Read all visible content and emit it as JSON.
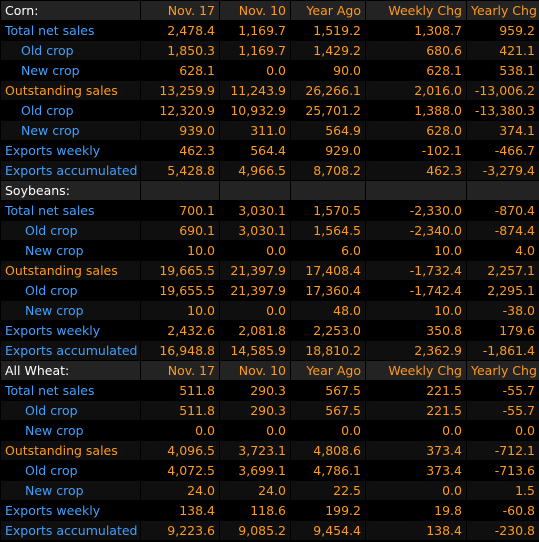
{
  "colors": {
    "label_blue": "#3fa0ff",
    "value_orange": "#ff9a1a",
    "header_bg": "#232323",
    "background": "#000000"
  },
  "sections": [
    {
      "header": [
        "Corn:",
        "Nov. 17",
        "Nov. 10",
        "Year Ago",
        "Weekly Chg",
        "Yearly Chg"
      ],
      "rows": [
        {
          "label": "Total net sales",
          "color": "blue",
          "indent": 0,
          "values": [
            "2,478.4",
            "1,169.7",
            "1,519.2",
            "1,308.7",
            "959.2"
          ]
        },
        {
          "label": "Old crop",
          "color": "blue",
          "indent": 1,
          "values": [
            "1,850.3",
            "1,169.7",
            "1,429.2",
            "680.6",
            "421.1"
          ]
        },
        {
          "label": "New crop",
          "color": "blue",
          "indent": 1,
          "values": [
            "628.1",
            "0.0",
            "90.0",
            "628.1",
            "538.1"
          ]
        },
        {
          "label": "Outstanding sales",
          "color": "orange",
          "indent": 0,
          "values": [
            "13,259.9",
            "11,243.9",
            "26,266.1",
            "2,016.0",
            "-13,006.2"
          ]
        },
        {
          "label": "Old crop",
          "color": "blue",
          "indent": 1,
          "values": [
            "12,320.9",
            "10,932.9",
            "25,701.2",
            "1,388.0",
            "-13,380.3"
          ]
        },
        {
          "label": "New crop",
          "color": "blue",
          "indent": 1,
          "values": [
            "939.0",
            "311.0",
            "564.9",
            "628.0",
            "374.1"
          ]
        },
        {
          "label": "Exports weekly",
          "color": "blue",
          "indent": 0,
          "values": [
            "462.3",
            "564.4",
            "929.0",
            "-102.1",
            "-466.7"
          ]
        },
        {
          "label": "Exports accumulated",
          "color": "blue",
          "indent": 0,
          "values": [
            "5,428.8",
            "4,966.5",
            "8,708.2",
            "462.3",
            "-3,279.4"
          ]
        }
      ]
    },
    {
      "header": [
        "Soybeans:",
        "",
        "",
        "",
        "",
        ""
      ],
      "rows": [
        {
          "label": "Total net sales",
          "color": "blue",
          "indent": 0,
          "values": [
            "700.1",
            "3,030.1",
            "1,570.5",
            "-2,330.0",
            "-870.4"
          ]
        },
        {
          "label": "Old crop",
          "color": "blue",
          "indent": 2,
          "values": [
            "690.1",
            "3,030.1",
            "1,564.5",
            "-2,340.0",
            "-874.4"
          ]
        },
        {
          "label": "New crop",
          "color": "blue",
          "indent": 2,
          "values": [
            "10.0",
            "0.0",
            "6.0",
            "10.0",
            "4.0"
          ]
        },
        {
          "label": "Outstanding sales",
          "color": "orange",
          "indent": 0,
          "values": [
            "19,665.5",
            "21,397.9",
            "17,408.4",
            "-1,732.4",
            "2,257.1"
          ]
        },
        {
          "label": "Old crop",
          "color": "blue",
          "indent": 2,
          "values": [
            "19,655.5",
            "21,397.9",
            "17,360.4",
            "-1,742.4",
            "2,295.1"
          ]
        },
        {
          "label": "New crop",
          "color": "blue",
          "indent": 2,
          "values": [
            "10.0",
            "0.0",
            "48.0",
            "10.0",
            "-38.0"
          ]
        },
        {
          "label": "Exports weekly",
          "color": "blue",
          "indent": 0,
          "values": [
            "2,432.6",
            "2,081.8",
            "2,253.0",
            "350.8",
            "179.6"
          ]
        },
        {
          "label": "Exports accumulated",
          "color": "blue",
          "indent": 0,
          "values": [
            "16,948.8",
            "14,585.9",
            "18,810.2",
            "2,362.9",
            "-1,861.4"
          ]
        }
      ]
    },
    {
      "header": [
        "All Wheat:",
        "Nov. 17",
        "Nov. 10",
        "Year Ago",
        "Weekly Chg",
        "Yearly Chg"
      ],
      "rows": [
        {
          "label": "Total net sales",
          "color": "blue",
          "indent": 0,
          "values": [
            "511.8",
            "290.3",
            "567.5",
            "221.5",
            "-55.7"
          ]
        },
        {
          "label": "Old crop",
          "color": "blue",
          "indent": 2,
          "values": [
            "511.8",
            "290.3",
            "567.5",
            "221.5",
            "-55.7"
          ]
        },
        {
          "label": "New crop",
          "color": "blue",
          "indent": 2,
          "values": [
            "0.0",
            "0.0",
            "0.0",
            "0.0",
            "0.0"
          ]
        },
        {
          "label": "Outstanding sales",
          "color": "orange",
          "indent": 0,
          "values": [
            "4,096.5",
            "3,723.1",
            "4,808.6",
            "373.4",
            "-712.1"
          ]
        },
        {
          "label": "Old crop",
          "color": "blue",
          "indent": 2,
          "values": [
            "4,072.5",
            "3,699.1",
            "4,786.1",
            "373.4",
            "-713.6"
          ]
        },
        {
          "label": "New crop",
          "color": "blue",
          "indent": 2,
          "values": [
            "24.0",
            "24.0",
            "22.5",
            "0.0",
            "1.5"
          ]
        },
        {
          "label": "Exports weekly",
          "color": "blue",
          "indent": 0,
          "values": [
            "138.4",
            "118.6",
            "199.2",
            "19.8",
            "-60.8"
          ]
        },
        {
          "label": "Exports accumulated",
          "color": "blue",
          "indent": 0,
          "values": [
            "9,223.6",
            "9,085.2",
            "9,454.4",
            "138.4",
            "-230.8"
          ]
        }
      ]
    }
  ]
}
